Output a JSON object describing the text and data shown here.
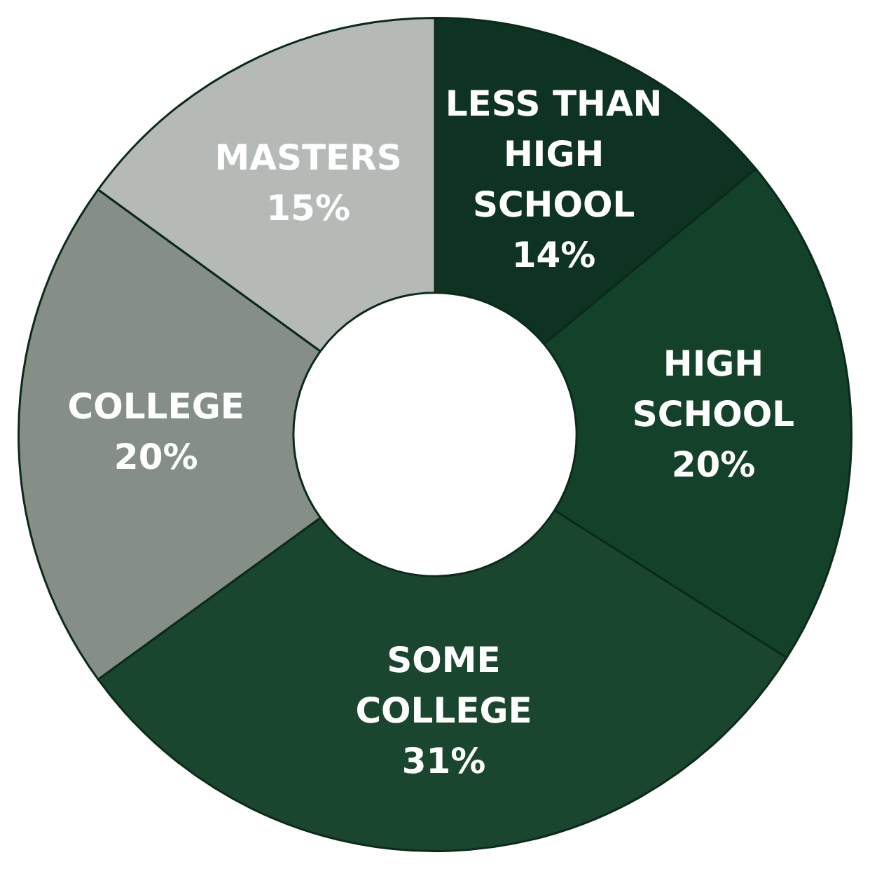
{
  "chart_data": {
    "type": "donut",
    "categories": [
      "LESS THAN HIGH SCHOOL",
      "HIGH SCHOOL",
      "SOME COLLEGE",
      "COLLEGE",
      "MASTERS"
    ],
    "values": [
      14,
      20,
      31,
      20,
      15
    ],
    "colors": [
      "#0e3322",
      "#134129",
      "#1a4630",
      "#858e87",
      "#b5bab7"
    ],
    "value_labels": [
      "14%",
      "20%",
      "31%",
      "20%",
      "15%"
    ],
    "legend": false
  }
}
